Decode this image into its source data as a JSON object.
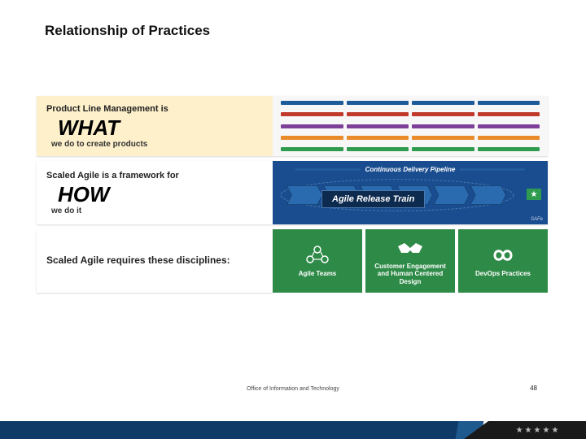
{
  "title": "Relationship of Practices",
  "rows": {
    "what": {
      "line1": "Product Line Management is",
      "big": "WHAT",
      "line3": "we do to create products",
      "left_bg": "#fef0cb",
      "bar_colors": [
        "#1d5a9a",
        "#c0392b",
        "#7e3f98",
        "#e98b2a",
        "#2e9b4f"
      ],
      "segments_per_line": 4
    },
    "how": {
      "line1": "Scaled Agile is a framework for",
      "big": "HOW",
      "line3": "we do it",
      "right_bg": "#1a4d8f",
      "cdp_label": "Continuous Delivery Pipeline",
      "art_label": "Agile Release Train",
      "safe_tag": "SAFe",
      "chevron_colors": [
        "#2a6bb0",
        "#2a6bb0",
        "#2a6bb0",
        "#2a6bb0",
        "#2a6bb0",
        "#2a6bb0"
      ],
      "flag_color": "#2e9b4f"
    },
    "disc": {
      "line1": "Scaled Agile requires these disciplines:",
      "card_bg": "#2e8a47",
      "cards": [
        {
          "id": "agile-teams",
          "label": "Agile Teams",
          "icon": "teams"
        },
        {
          "id": "customer-engagement",
          "label": "Customer Engagement\nand Human Centered Design",
          "icon": "handshake"
        },
        {
          "id": "devops",
          "label": "DevOps Practices",
          "icon": "infinity"
        }
      ]
    }
  },
  "footer": {
    "text": "Office of Information and Technology",
    "page": "48",
    "main_color": "#0d3a66",
    "dark_color": "#1a1a1a",
    "stars": 5
  }
}
